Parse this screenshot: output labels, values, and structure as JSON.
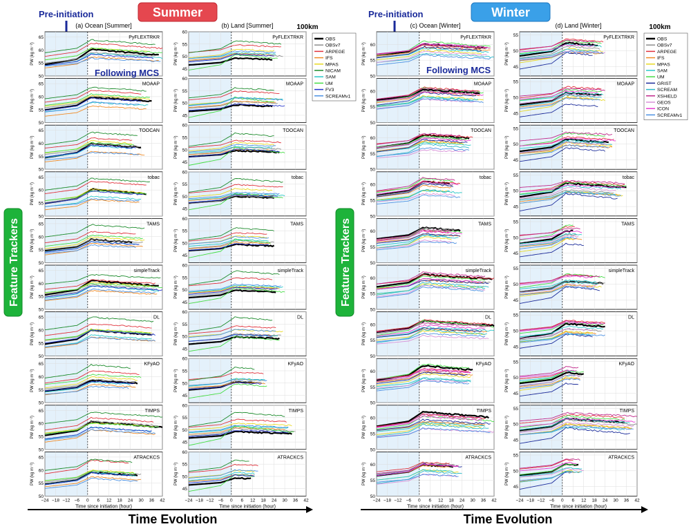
{
  "figure": {
    "season_summer": "Summer",
    "season_winter": "Winter",
    "pre_initiation": "Pre-initiation",
    "following_mcs": "Following MCS",
    "feature_trackers": "Feature Trackers",
    "time_evolution": "Time Evolution",
    "resolution_note": "100km",
    "colors": {
      "summer_badge": "#e5474f",
      "winter_badge": "#3aa0e8",
      "tracker_badge": "#1db33a",
      "pre_period_shade": "#e4f1fb",
      "arrow": "#1a2a9a"
    }
  },
  "chart_data": {
    "type": "line",
    "xlabel": "Time since initiation (hour)",
    "ylabel": "PW (kg m⁻²)",
    "xlim": [
      -24,
      42
    ],
    "x_ticks": [
      -24,
      -18,
      -12,
      -6,
      0,
      6,
      12,
      18,
      24,
      30,
      36,
      42
    ],
    "x_tick_labels": [
      "−24",
      "−18",
      "−12",
      "−6",
      "0",
      "6",
      "12",
      "18",
      "24",
      "30",
      "36",
      "42"
    ],
    "shaded_x_range": [
      -24,
      0
    ],
    "trackers": [
      "PyFLEXTRKR",
      "MOAAP",
      "TOOCAN",
      "tobac",
      "TAMS",
      "simpleTrack",
      "DL",
      "KFyAO",
      "TIMPS",
      "ATRACKCS"
    ],
    "columns": [
      {
        "title": "(a) Ocean [Summer]",
        "ylim": [
          50,
          67
        ],
        "y_ticks": [
          50,
          55,
          60,
          65
        ],
        "tracker_ends": [
          42,
          36,
          32,
          36,
          32,
          42,
          42,
          30,
          42,
          30
        ],
        "baselines": {
          "OBS": 55,
          "OBSv7": 55.5,
          "ARPEGE": 58,
          "IFS": 53,
          "MPAS": 56,
          "NICAM": 59.5,
          "SAM": 54,
          "UM": 56.5,
          "FV3": 54.5,
          "SCREAMv1": 53.5
        },
        "peak_rise": {
          "OBS": 5,
          "OBSv7": 4.5,
          "ARPEGE": 4.5,
          "IFS": 4,
          "MPAS": 4,
          "NICAM": 4.5,
          "SAM": 4,
          "UM": 4,
          "FV3": 4.5,
          "SCREAMv1": 3.5
        }
      },
      {
        "title": "(b) Land [Summer]",
        "ylim": [
          42,
          60
        ],
        "y_ticks": [
          45,
          50,
          55,
          60
        ],
        "tracker_ends": [
          30,
          30,
          30,
          30,
          24,
          30,
          30,
          20,
          36,
          16
        ],
        "baselines": {
          "OBS": 47,
          "OBSv7": 47.5,
          "ARPEGE": 51,
          "IFS": 48,
          "MPAS": 49.5,
          "NICAM": 51.5,
          "SAM": 48.5,
          "UM": 44,
          "FV3": 47.5,
          "SCREAMv1": 49
        },
        "peak_rise": {
          "OBS": 3,
          "OBSv7": 3,
          "ARPEGE": 3,
          "IFS": 2.5,
          "MPAS": 3,
          "NICAM": 5,
          "SAM": 3,
          "UM": 7,
          "FV3": 3,
          "SCREAMv1": 3
        }
      },
      {
        "title": "(c) Ocean [Winter]",
        "ylim": [
          50,
          64
        ],
        "y_ticks": [
          50,
          55,
          60
        ],
        "tracker_ends": [
          42,
          36,
          30,
          24,
          24,
          42,
          42,
          30,
          42,
          24
        ],
        "baselines": {
          "OBS": 57,
          "OBSv7": 56.5,
          "ARPEGE": 57.5,
          "IFS": 56,
          "MPAS": 55,
          "SAM": 55.5,
          "UM": 57,
          "GRIST": 56,
          "SCREAM": 54.5,
          "XSHiELD": 57.5,
          "GEOS": 54,
          "ICON": 56.5,
          "SCREAMv1": 54
        },
        "peak_rise": {
          "OBS": 4,
          "OBSv7": 3.5,
          "ARPEGE": 3.5,
          "IFS": 3,
          "MPAS": 3,
          "SAM": 3,
          "UM": 4,
          "GRIST": 3.5,
          "SCREAM": 3.5,
          "XSHiELD": 3.5,
          "GEOS": 3,
          "ICON": 3.5,
          "SCREAMv1": 3
        }
      },
      {
        "title": "(d) Land [Winter]",
        "ylim": [
          42,
          56
        ],
        "y_ticks": [
          45,
          50,
          55
        ],
        "tracker_ends": [
          24,
          24,
          30,
          36,
          12,
          24,
          24,
          12,
          42,
          12
        ],
        "baselines": {
          "OBS": 48,
          "OBSv7": 47.5,
          "ARPEGE": 50,
          "IFS": 47,
          "MPAS": 46,
          "SAM": 48.5,
          "UM": 49,
          "GRIST": 44,
          "SCREAM": 47,
          "XSHiELD": 50.5,
          "GEOS": 47.5,
          "ICON": 49.5,
          "SCREAMv1": 46.5
        },
        "peak_rise": {
          "OBS": 4,
          "OBSv7": 3.5,
          "ARPEGE": 3,
          "IFS": 3,
          "MPAS": 4,
          "SAM": 3,
          "UM": 4,
          "GRIST": 5,
          "SCREAM": 3,
          "XSHiELD": 2.5,
          "GEOS": 3,
          "ICON": 2.5,
          "SCREAMv1": 3
        }
      }
    ],
    "legends": [
      {
        "placement": "right of column (b)",
        "entries": [
          {
            "name": "OBS",
            "color": "#000000"
          },
          {
            "name": "OBSv7",
            "color": "#8c8c8c"
          },
          {
            "name": "ARPEGE",
            "color": "#e0303a"
          },
          {
            "name": "IFS",
            "color": "#f08a24"
          },
          {
            "name": "MPAS",
            "color": "#e8d820"
          },
          {
            "name": "NICAM",
            "color": "#1a8a2a"
          },
          {
            "name": "SAM",
            "color": "#28c8c8"
          },
          {
            "name": "UM",
            "color": "#44dd44"
          },
          {
            "name": "FV3",
            "color": "#2233cc"
          },
          {
            "name": "SCREAMv1",
            "color": "#4a90e2"
          }
        ]
      },
      {
        "placement": "right of column (d)",
        "entries": [
          {
            "name": "OBS",
            "color": "#000000"
          },
          {
            "name": "OBSv7",
            "color": "#8c8c8c"
          },
          {
            "name": "ARPEGE",
            "color": "#e0303a"
          },
          {
            "name": "IFS",
            "color": "#f08a24"
          },
          {
            "name": "MPAS",
            "color": "#e8d820"
          },
          {
            "name": "SAM",
            "color": "#28c8c8"
          },
          {
            "name": "UM",
            "color": "#44dd44"
          },
          {
            "name": "GRIST",
            "color": "#1a2a9a"
          },
          {
            "name": "SCREAM",
            "color": "#2bb8c8"
          },
          {
            "name": "XSHiELD",
            "color": "#c0288a"
          },
          {
            "name": "GEOS",
            "color": "#d890d8"
          },
          {
            "name": "ICON",
            "color": "#e83ad0"
          },
          {
            "name": "SCREAMv1",
            "color": "#4a90e2"
          }
        ]
      }
    ]
  }
}
